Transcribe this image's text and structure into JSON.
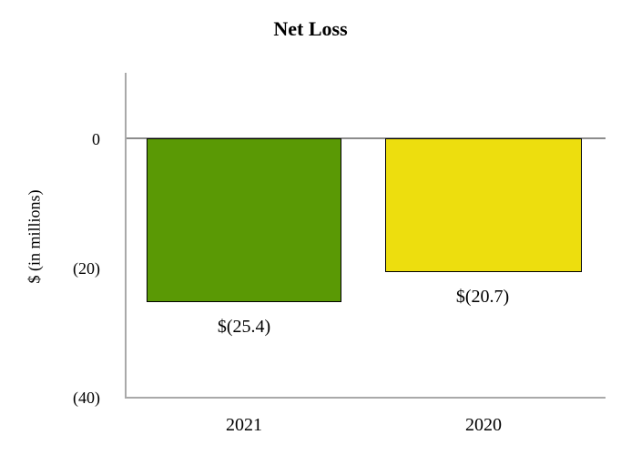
{
  "chart_data": {
    "type": "bar",
    "title": "Net Loss",
    "ylabel": "$ (in millions)",
    "xlabel": "",
    "categories": [
      "2021",
      "2020"
    ],
    "values": [
      -25.4,
      -20.7
    ],
    "value_labels": [
      "$(25.4)",
      "$(20.7)"
    ],
    "bar_colors": [
      "#5a9905",
      "#edde0e"
    ],
    "bar_border_color": "#000000",
    "yticks": [
      {
        "value": 0,
        "label": "0"
      },
      {
        "value": -20,
        "label": "(20)"
      },
      {
        "value": -40,
        "label": "(40)"
      }
    ],
    "ylim": [
      -40,
      10
    ],
    "grid": false,
    "legend": false,
    "axis_color": "#a9a9a9",
    "zero_line_color": "#8c8c8c"
  }
}
